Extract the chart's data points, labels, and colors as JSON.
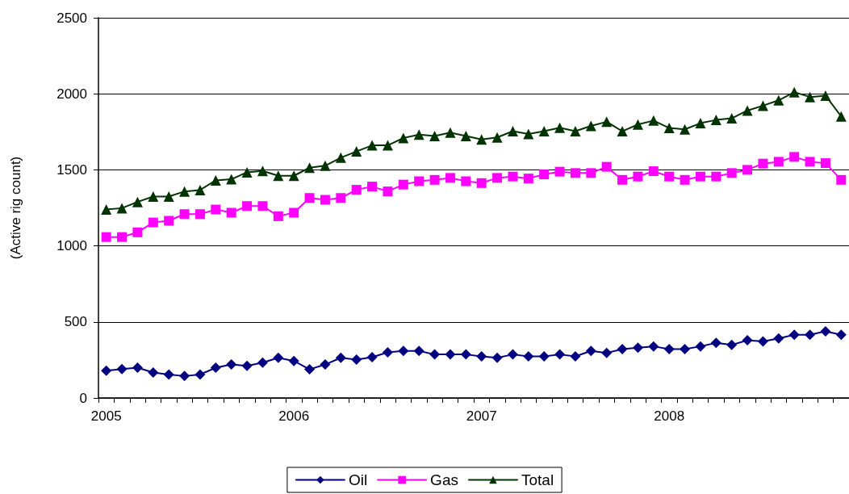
{
  "chart_data": {
    "type": "line",
    "ylabel": "(Active rig count)",
    "categories": [
      "2005",
      null,
      null,
      null,
      null,
      null,
      null,
      null,
      null,
      null,
      null,
      null,
      "2006",
      null,
      null,
      null,
      null,
      null,
      null,
      null,
      null,
      null,
      null,
      null,
      "2007",
      null,
      null,
      null,
      null,
      null,
      null,
      null,
      null,
      null,
      null,
      null,
      "2008",
      null,
      null,
      null,
      null,
      null,
      null,
      null,
      null,
      null,
      null,
      null
    ],
    "series": [
      {
        "name": "Oil",
        "color": "#000080",
        "marker": "diamond",
        "values": [
          179,
          190,
          199,
          167,
          154,
          144,
          154,
          199,
          220,
          211,
          232,
          264,
          243,
          188,
          220,
          264,
          252,
          268,
          300,
          309,
          309,
          286,
          286,
          286,
          273,
          264,
          286,
          273,
          273,
          286,
          273,
          309,
          296,
          321,
          331,
          339,
          321,
          321,
          339,
          362,
          349,
          379,
          371,
          392,
          415,
          415,
          438,
          415
        ]
      },
      {
        "name": "Gas",
        "color": "#ff00ff",
        "marker": "square",
        "values": [
          1058,
          1058,
          1089,
          1154,
          1165,
          1209,
          1209,
          1239,
          1218,
          1262,
          1262,
          1195,
          1218,
          1315,
          1303,
          1315,
          1369,
          1390,
          1358,
          1403,
          1425,
          1434,
          1447,
          1425,
          1413,
          1447,
          1456,
          1443,
          1470,
          1488,
          1479,
          1479,
          1520,
          1434,
          1456,
          1491,
          1456,
          1434,
          1456,
          1456,
          1479,
          1500,
          1541,
          1553,
          1585,
          1553,
          1544,
          1434
        ]
      },
      {
        "name": "Total",
        "color": "#003300",
        "marker": "triangle",
        "values": [
          1239,
          1248,
          1289,
          1324,
          1324,
          1358,
          1367,
          1431,
          1438,
          1484,
          1493,
          1461,
          1461,
          1514,
          1527,
          1580,
          1621,
          1661,
          1661,
          1709,
          1732,
          1722,
          1745,
          1722,
          1700,
          1713,
          1754,
          1736,
          1754,
          1777,
          1754,
          1789,
          1816,
          1754,
          1798,
          1824,
          1775,
          1766,
          1807,
          1828,
          1839,
          1890,
          1922,
          1957,
          2011,
          1979,
          1988,
          1851
        ]
      }
    ],
    "ylim": [
      0,
      2500
    ],
    "yticks": [
      0,
      500,
      1000,
      1500,
      2000,
      2500
    ],
    "grid": "y",
    "legend": "bottom"
  }
}
